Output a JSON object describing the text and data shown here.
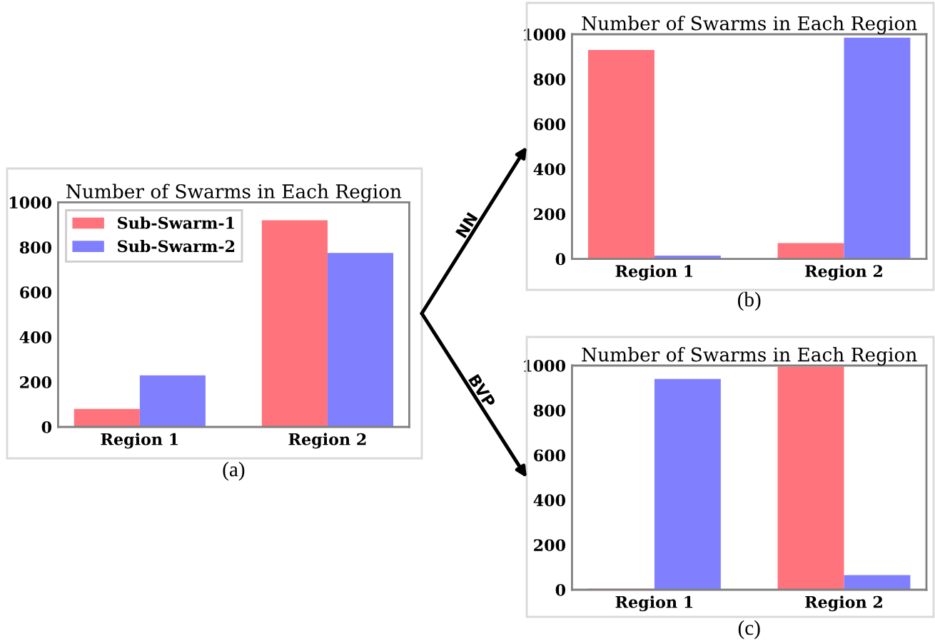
{
  "chart_data": [
    {
      "type": "bar",
      "title": "Number of Swarms in Each Region",
      "categories": [
        "Region 1",
        "Region 2"
      ],
      "series": [
        {
          "name": "Sub-Swarm-1",
          "color": "#ff737c",
          "values": [
            80,
            920
          ]
        },
        {
          "name": "Sub-Swarm-2",
          "color": "#8080ff",
          "values": [
            230,
            775
          ]
        }
      ],
      "ylim": [
        0,
        1000
      ],
      "yticks": [
        0,
        200,
        400,
        600,
        800,
        1000
      ],
      "legend": "top left",
      "annotations": [
        "(a)"
      ]
    },
    {
      "type": "bar",
      "title": "Number of Swarms in Each Region",
      "categories": [
        "Region 1",
        "Region 2"
      ],
      "series": [
        {
          "color": "#ff737c",
          "values": [
            930,
            70
          ]
        },
        {
          "color": "#8080ff",
          "values": [
            15,
            985
          ]
        }
      ],
      "ylim": [
        0,
        1000
      ],
      "yticks": [
        0,
        200,
        400,
        600,
        800,
        1000
      ],
      "annotations": [
        "(b)",
        "NN"
      ]
    },
    {
      "type": "bar",
      "title": "Number of Swarms in Each Region",
      "categories": [
        "Region 1",
        "Region 2"
      ],
      "series": [
        {
          "color": "#ff737c",
          "values": [
            5,
            995
          ]
        },
        {
          "color": "#8080ff",
          "values": [
            940,
            65
          ]
        }
      ],
      "ylim": [
        0,
        1000
      ],
      "yticks": [
        0,
        200,
        400,
        600,
        800,
        1000
      ],
      "annotations": [
        "(c)",
        "BVP"
      ]
    }
  ]
}
